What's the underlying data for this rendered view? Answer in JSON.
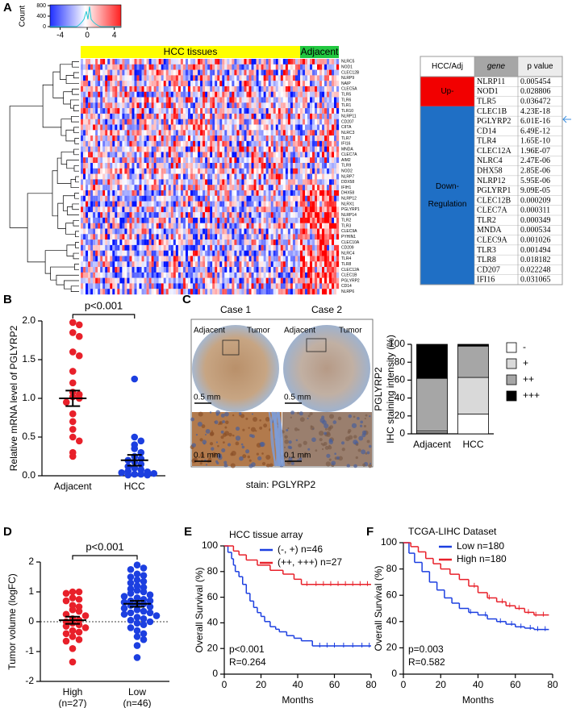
{
  "panel_labels": {
    "a": "A",
    "b": "B",
    "c": "C",
    "d": "D",
    "e": "E",
    "f": "F"
  },
  "heatmap": {
    "colorbar": {
      "label": "Count",
      "xlim": [
        -5.5,
        5
      ],
      "xticks": [
        -4,
        0,
        4
      ],
      "ylim": [
        0,
        800
      ],
      "yticks": [
        0,
        400,
        800
      ]
    },
    "groups": [
      "HCC  tissues",
      "Adjacent"
    ],
    "genes": [
      "NLRC5",
      "NOD1",
      "CLEC12B",
      "NLRP9",
      "NAIP",
      "CLEC5A",
      "TLR5",
      "TLR6",
      "TLR1",
      "TLR10",
      "NLRP11",
      "CD207",
      "CIITA",
      "NLRC3",
      "TLR7",
      "IFI16",
      "MNDA",
      "CLEC7A",
      "AIM2",
      "TLR9",
      "NOD2",
      "NLRP7",
      "DDX58",
      "IFIH1",
      "DHX58",
      "NLRP12",
      "NLRX1",
      "PGLYRP1",
      "NLRP14",
      "TLR2",
      "TLR3",
      "CLEC9A",
      "PYHIN1",
      "CLEC10A",
      "CD209",
      "NLRC4",
      "TLR4",
      "TLR8",
      "CLEC12A",
      "CLEC1B",
      "PGLYRP2",
      "CD14",
      "NLRP6"
    ]
  },
  "table": {
    "header": [
      "HCC/Adj",
      "gene",
      "p value"
    ],
    "groups": [
      {
        "label": [
          "Up-"
        ],
        "color": "#f20000",
        "rows": [
          [
            "NLRP11",
            "0.005454"
          ],
          [
            "NOD1",
            "0.028806"
          ],
          [
            "TLR5",
            "0.036472"
          ]
        ]
      },
      {
        "label": [
          "Down-",
          "Regulation"
        ],
        "color": "#1f6fc5",
        "rows": [
          [
            "CLEC1B",
            "4.23E-18"
          ],
          [
            "PGLYRP2",
            "6.01E-16"
          ],
          [
            "CD14",
            "6.49E-12"
          ],
          [
            "TLR4",
            "1.65E-10"
          ],
          [
            "CLEC12A",
            "1.96E-07"
          ],
          [
            "NLRC4",
            "2.47E-06"
          ],
          [
            "DHX58",
            "2.85E-06"
          ],
          [
            "NLRP12",
            "5.95E-06"
          ],
          [
            "PGLYRP1",
            "9.09E-05"
          ],
          [
            "CLEC12B",
            "0.000209"
          ],
          [
            "CLEC7A",
            "0.000311"
          ],
          [
            "TLR2",
            "0.000349"
          ],
          [
            "MNDA",
            "0.000534"
          ],
          [
            "CLEC9A",
            "0.001026"
          ],
          [
            "TLR3",
            "0.001494"
          ],
          [
            "TLR8",
            "0.018182"
          ],
          [
            "CD207",
            "0.022248"
          ],
          [
            "IFI16",
            "0.031065"
          ]
        ]
      }
    ]
  },
  "ihc": {
    "cases": [
      "Case 1",
      "Case 2"
    ],
    "regions": [
      "Adjacent",
      "Tumor"
    ],
    "scale_top": "0.5 mm",
    "scale_bottom": "0.1 mm",
    "stain": "stain: PGLYRP2"
  },
  "chart_data": [
    {
      "type": "strip",
      "ylabel": "Relative mRNA level of PGLYRP2",
      "annotation": "p<0.001",
      "ylim": [
        0,
        2
      ],
      "yticks": [
        {
          "value": 0,
          "label": "0.0"
        },
        {
          "value": 0.5,
          "label": "0.5"
        },
        {
          "value": 1,
          "label": "1.0"
        },
        {
          "value": 1.5,
          "label": "1.5"
        },
        {
          "value": 2,
          "label": "2.0"
        }
      ],
      "groups": [
        {
          "name": [
            "Adjacent"
          ],
          "color": "#e8202a",
          "mean": 1.0,
          "sem": 0.1,
          "values": [
            1.98,
            1.95,
            1.85,
            1.8,
            1.6,
            1.55,
            1.35,
            1.2,
            1.08,
            1.05,
            1.02,
            1.0,
            0.95,
            0.8,
            0.7,
            0.6,
            0.5,
            0.45,
            0.3,
            0.25
          ]
        },
        {
          "name": [
            "HCC"
          ],
          "color": "#1c3fe0",
          "mean": 0.2,
          "sem": 0.07,
          "values": [
            1.25,
            0.5,
            0.45,
            0.4,
            0.35,
            0.3,
            0.25,
            0.22,
            0.2,
            0.18,
            0.15,
            0.12,
            0.1,
            0.08,
            0.06,
            0.05,
            0.04,
            0.03,
            0.02,
            0.02,
            0.01,
            0.01
          ]
        }
      ]
    },
    {
      "type": "stacked_bar",
      "ylabel": [
        "PGLYRP2",
        "IHC staining intensity (%)"
      ],
      "legend": "right",
      "categories": [
        "Adjacent",
        "HCC"
      ],
      "ylim": [
        0,
        100
      ],
      "yticks": [
        0,
        20,
        40,
        60,
        80,
        100
      ],
      "series": [
        {
          "name": "-",
          "color": "#ffffff",
          "values": [
            1,
            22
          ]
        },
        {
          "name": "+",
          "color": "#d9d9d9",
          "values": [
            2,
            41
          ]
        },
        {
          "name": "++",
          "color": "#a6a6a6",
          "values": [
            59,
            35
          ]
        },
        {
          "name": "+++",
          "color": "#000000",
          "values": [
            38,
            2
          ]
        }
      ]
    },
    {
      "type": "strip",
      "ylabel": "Tumor volume (logFC)",
      "annotation": "p<0.001",
      "zero_line": true,
      "ylim": [
        -2,
        2
      ],
      "yticks": [
        -2,
        -1,
        0,
        1,
        2
      ],
      "groups": [
        {
          "name": [
            "High",
            "(n=27)"
          ],
          "color": "#e8202a",
          "mean": 0.05,
          "sem": 0.12,
          "values": [
            1.0,
            1.0,
            0.95,
            0.8,
            0.75,
            0.7,
            0.55,
            0.5,
            0.4,
            0.35,
            0.25,
            0.2,
            0.1,
            0.05,
            0.0,
            -0.05,
            -0.1,
            -0.15,
            -0.2,
            -0.3,
            -0.35,
            -0.4,
            -0.5,
            -0.6,
            -0.65,
            -0.9,
            -1.35
          ]
        },
        {
          "name": [
            "Low",
            "(n=46)"
          ],
          "color": "#1c3fe0",
          "mean": 0.6,
          "sem": 0.1,
          "values": [
            1.9,
            1.8,
            1.75,
            1.6,
            1.55,
            1.5,
            1.4,
            1.35,
            1.3,
            1.2,
            1.15,
            1.1,
            1.05,
            1.0,
            0.95,
            0.9,
            0.85,
            0.8,
            0.75,
            0.7,
            0.7,
            0.65,
            0.6,
            0.6,
            0.55,
            0.5,
            0.45,
            0.4,
            0.35,
            0.3,
            0.3,
            0.25,
            0.2,
            0.15,
            0.1,
            0.05,
            0.0,
            -0.05,
            -0.1,
            -0.2,
            -0.3,
            -0.4,
            -0.5,
            -0.6,
            -0.8,
            -1.2
          ]
        }
      ]
    },
    {
      "type": "km",
      "title": "HCC tissue array",
      "xlabel": "Months",
      "ylabel": "Overall Survival (%)",
      "annotations": [
        "p<0.001",
        "R=0.264"
      ],
      "xlim": [
        0,
        80
      ],
      "xticks": [
        0,
        20,
        40,
        60,
        80
      ],
      "ylim": [
        0,
        100
      ],
      "yticks": [
        0,
        20,
        40,
        60,
        80,
        100
      ],
      "series": [
        {
          "name": "(-, +) n=46",
          "color": "#1c3fe0",
          "x": [
            0,
            2,
            4,
            5,
            6,
            8,
            10,
            12,
            14,
            16,
            18,
            20,
            22,
            25,
            28,
            30,
            34,
            38,
            42,
            48,
            80
          ],
          "y": [
            100,
            95,
            90,
            85,
            80,
            76,
            70,
            63,
            57,
            52,
            48,
            45,
            41,
            37,
            35,
            33,
            30,
            28,
            26,
            22,
            22
          ],
          "censored": [
            52,
            56,
            60,
            65,
            70,
            75,
            79
          ]
        },
        {
          "name": "(++, +++) n=27",
          "color": "#e8202a",
          "x": [
            0,
            5,
            8,
            12,
            18,
            25,
            32,
            38,
            42,
            80
          ],
          "y": [
            100,
            96,
            93,
            89,
            85,
            81,
            78,
            74,
            70,
            70
          ],
          "censored": [
            45,
            50,
            54,
            58,
            62,
            66,
            70,
            74,
            78
          ]
        }
      ]
    },
    {
      "type": "km",
      "title": "TCGA-LIHC Dataset",
      "xlabel": "Months",
      "ylabel": "Overall Survival (%)",
      "annotations": [
        "p=0.003",
        "R=0.582"
      ],
      "xlim": [
        0,
        80
      ],
      "xticks": [
        0,
        20,
        40,
        60,
        80
      ],
      "ylim": [
        0,
        100
      ],
      "yticks": [
        0,
        20,
        40,
        60,
        80,
        100
      ],
      "series": [
        {
          "name": "Low  n=180",
          "color": "#1c3fe0",
          "x": [
            0,
            3,
            6,
            10,
            14,
            18,
            22,
            26,
            30,
            35,
            40,
            45,
            50,
            55,
            60,
            65,
            70,
            78
          ],
          "y": [
            100,
            92,
            85,
            78,
            70,
            64,
            58,
            54,
            50,
            47,
            45,
            42,
            40,
            38,
            36,
            35,
            34,
            34
          ],
          "censored": [
            36,
            44,
            52,
            58,
            63,
            68,
            72,
            76
          ]
        },
        {
          "name": "High n=180",
          "color": "#e8202a",
          "x": [
            0,
            4,
            8,
            12,
            16,
            20,
            25,
            30,
            35,
            40,
            45,
            50,
            55,
            60,
            65,
            70,
            78
          ],
          "y": [
            100,
            97,
            93,
            88,
            84,
            80,
            76,
            72,
            67,
            62,
            58,
            55,
            52,
            50,
            47,
            45,
            45
          ],
          "censored": [
            38,
            46,
            53,
            57,
            62,
            67,
            71,
            75
          ]
        }
      ]
    }
  ]
}
